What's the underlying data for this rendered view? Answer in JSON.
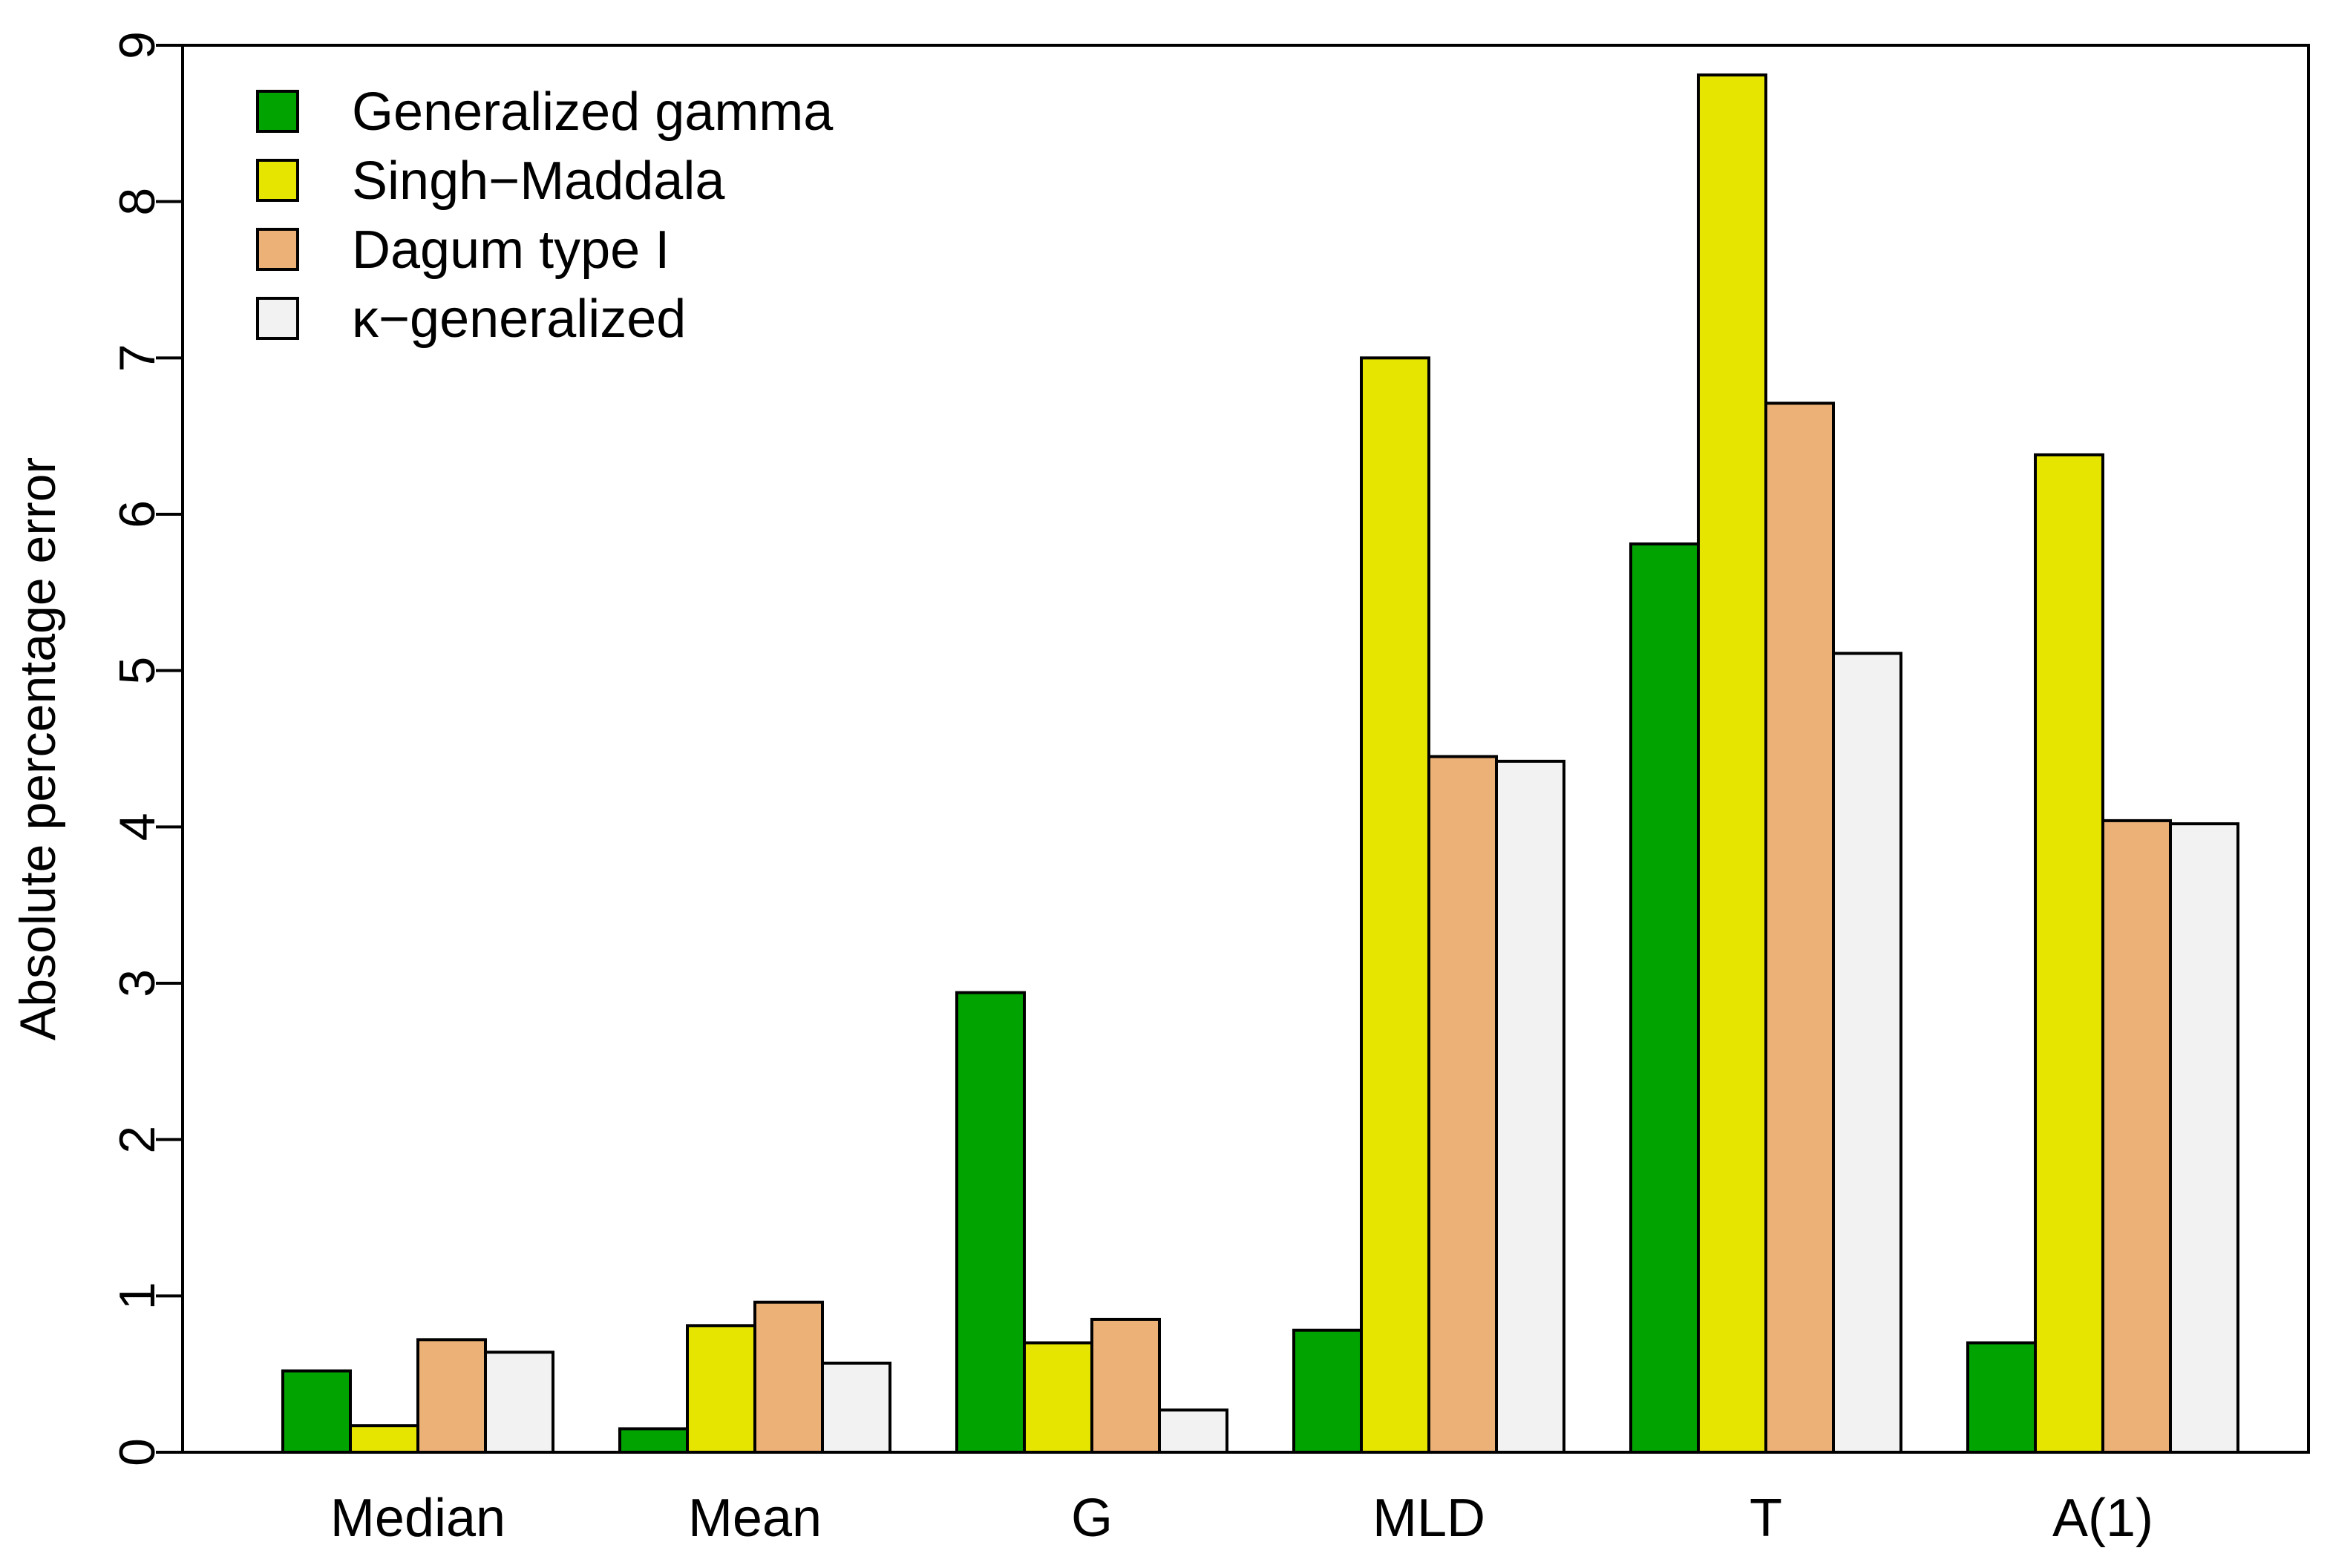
{
  "chart_data": {
    "type": "bar",
    "title": "",
    "xlabel": "",
    "ylabel": "Absolute percentage error",
    "ylim": [
      0,
      9
    ],
    "yticks": [
      "0",
      "1",
      "2",
      "3",
      "4",
      "5",
      "6",
      "7",
      "8",
      "9"
    ],
    "grid": false,
    "legend_position": "top-left",
    "categories": [
      "Median",
      "Mean",
      "G",
      "MLD",
      "T",
      "A(1)"
    ],
    "series": [
      {
        "name": "Generalized gamma",
        "color": "#00a300",
        "values": [
          0.52,
          0.15,
          2.94,
          0.78,
          5.81,
          0.7
        ]
      },
      {
        "name": "Singh−Maddala",
        "color": "#e5e500",
        "values": [
          0.17,
          0.81,
          0.7,
          7.0,
          8.81,
          6.38
        ]
      },
      {
        "name": "Dagum type I",
        "color": "#ecb176",
        "values": [
          0.72,
          0.96,
          0.85,
          4.45,
          6.71,
          4.04
        ]
      },
      {
        "name": "κ−generalized",
        "color": "#f2f2f2",
        "values": [
          0.64,
          0.57,
          0.27,
          4.42,
          5.11,
          4.02
        ]
      }
    ]
  }
}
